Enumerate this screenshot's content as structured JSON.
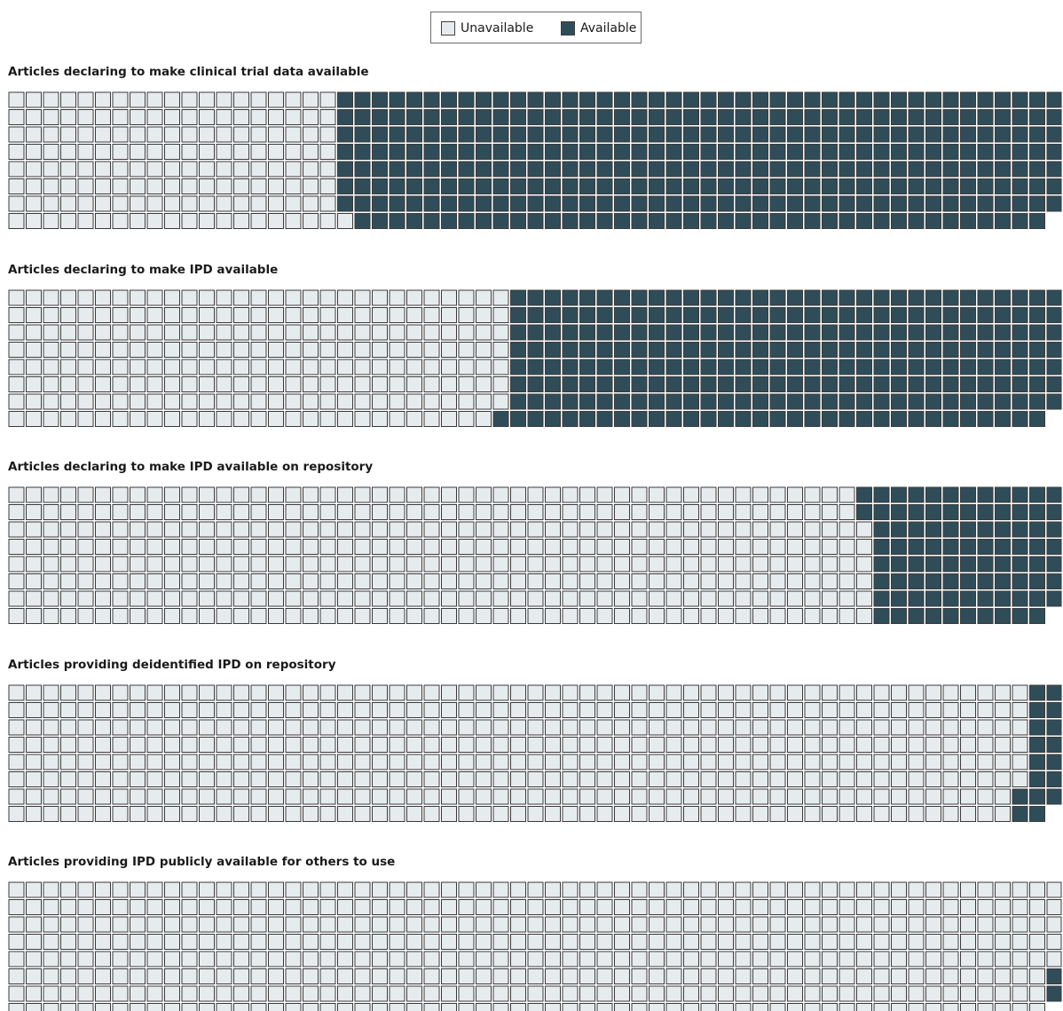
{
  "colors": {
    "unavailable": "#e6ecee",
    "available": "#2f4d59",
    "cell_border": "#3a3a3a"
  },
  "legend": {
    "unavailable_label": "Unavailable",
    "available_label": "Available"
  },
  "chart_data": [
    {
      "type": "waffle",
      "title": "Articles declaring to make clinical trial data available",
      "available_per_row": [
        42,
        42,
        42,
        42,
        42,
        42,
        42,
        40
      ]
    },
    {
      "type": "waffle",
      "title": "Articles declaring to make IPD available",
      "available_per_row": [
        32,
        32,
        32,
        32,
        32,
        32,
        32,
        32
      ]
    },
    {
      "type": "waffle",
      "title": "Articles declaring to make IPD available on repository",
      "available_per_row": [
        12,
        12,
        11,
        11,
        11,
        11,
        11,
        10
      ]
    },
    {
      "type": "waffle",
      "title": "Articles providing deidentified IPD on repository",
      "available_per_row": [
        2,
        2,
        2,
        2,
        2,
        2,
        3,
        2
      ]
    },
    {
      "type": "waffle",
      "title": "Articles providing IPD publicly available for others to use",
      "available_per_row": [
        0,
        0,
        0,
        0,
        0,
        1,
        1,
        0
      ]
    }
  ]
}
